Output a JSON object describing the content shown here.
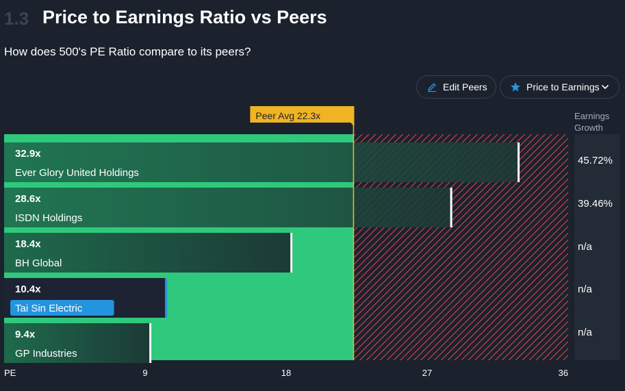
{
  "header": {
    "section_number": "1.3",
    "title": "Price to Earnings Ratio vs Peers",
    "subtitle": "How does 500's PE Ratio compare to its peers?"
  },
  "controls": {
    "edit_peers_label": "Edit Peers",
    "metric_label": "Price to Earnings"
  },
  "earnings_growth": {
    "header_line1": "Earnings",
    "header_line2": "Growth",
    "values": [
      "45.72%",
      "39.46%",
      "n/a",
      "n/a",
      "n/a"
    ]
  },
  "colors": {
    "background": "#1b222d",
    "green": "#2ec97c",
    "hatch_red": "#d64550",
    "avg_line": "#f0b323",
    "highlight": "#2394df"
  },
  "chart_data": {
    "type": "bar",
    "orientation": "horizontal",
    "title": "Price to Earnings Ratio vs Peers",
    "xlabel": "PE",
    "xlim": [
      0,
      36
    ],
    "xticks": [
      0,
      9,
      18,
      27,
      36
    ],
    "xtick_labels": [
      "PE",
      "9",
      "18",
      "27",
      "36"
    ],
    "peer_average": 22.3,
    "peer_average_label": "Peer Avg 22.3x",
    "series": [
      {
        "name": "Ever Glory United Holdings",
        "value": 32.9,
        "label": "32.9x",
        "highlight": false
      },
      {
        "name": "ISDN Holdings",
        "value": 28.6,
        "label": "28.6x",
        "highlight": false
      },
      {
        "name": "BH Global",
        "value": 18.4,
        "label": "18.4x",
        "highlight": false
      },
      {
        "name": "Tai Sin Electric",
        "value": 10.4,
        "label": "10.4x",
        "highlight": true
      },
      {
        "name": "GP Industries",
        "value": 9.4,
        "label": "9.4x",
        "highlight": false
      }
    ]
  }
}
